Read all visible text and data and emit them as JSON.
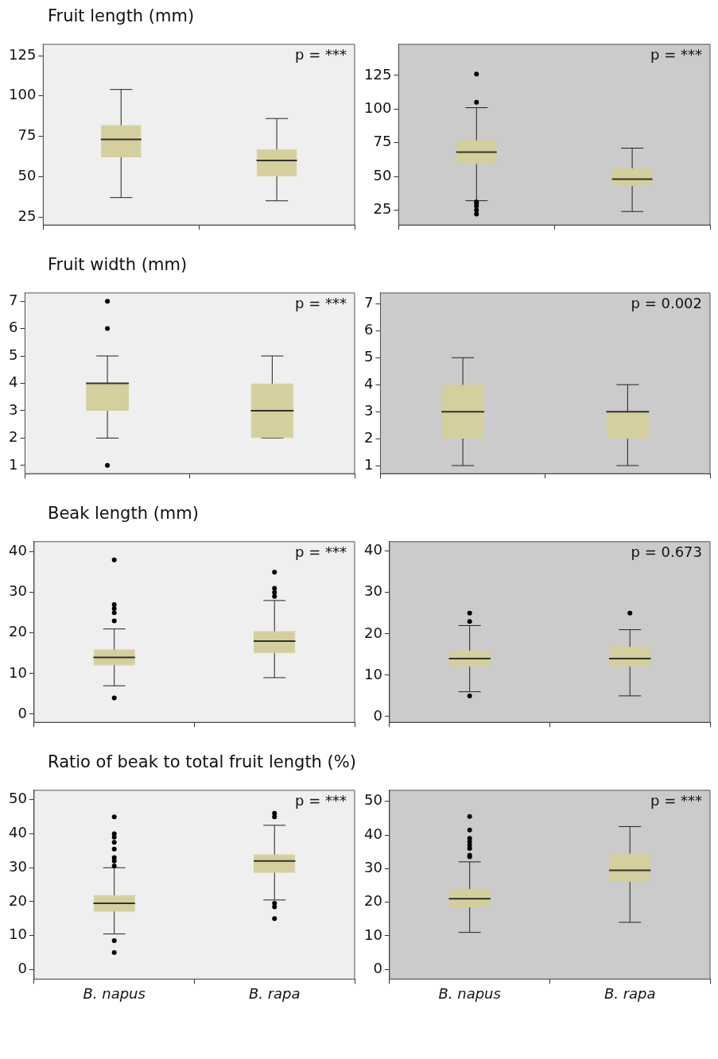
{
  "chart_data": [
    {
      "type": "box",
      "title": "Fruit length (mm)",
      "categories": [
        null,
        null
      ],
      "color": "#d4cf9c",
      "ylim": [
        20,
        132
      ],
      "yticks": [
        25,
        50,
        75,
        100,
        125
      ],
      "tick_labels": "y",
      "annotations": [
        "p = ***"
      ],
      "boxes": [
        {
          "low": 37,
          "q1": 62,
          "median": 73,
          "q3": 82,
          "high": 104
        },
        {
          "low": 35,
          "q1": 50,
          "median": 60,
          "q3": 67,
          "high": 86
        }
      ]
    },
    {
      "type": "box",
      "categories": [
        null,
        null
      ],
      "color": "#d4cf9c",
      "ylim": [
        14,
        148
      ],
      "yticks": [
        25,
        50,
        75,
        100,
        125
      ],
      "tick_labels": "y",
      "annotations": [
        "p = ***"
      ],
      "boxes": [
        {
          "low": 32,
          "q1": 59,
          "median": 68,
          "q3": 77,
          "high": 101,
          "outliers": [
            126,
            105,
            31,
            30,
            28,
            25,
            22
          ]
        },
        {
          "low": 24,
          "q1": 43,
          "median": 48,
          "q3": 56,
          "high": 71
        }
      ]
    },
    {
      "type": "box",
      "title": "Fruit width (mm)",
      "categories": [
        null,
        null
      ],
      "color": "#d4cf9c",
      "ylim": [
        0.7,
        7.3
      ],
      "yticks": [
        1,
        2,
        3,
        4,
        5,
        6,
        7
      ],
      "tick_labels": "y",
      "annotations": [
        "p = ***"
      ],
      "boxes": [
        {
          "low": 2,
          "q1": 3,
          "median": 4,
          "q3": 4,
          "high": 5,
          "outliers": [
            7,
            6,
            1
          ]
        },
        {
          "low": 2,
          "q1": 2,
          "median": 3,
          "q3": 4,
          "high": 5
        }
      ]
    },
    {
      "type": "box",
      "categories": [
        null,
        null
      ],
      "color": "#d4cf9c",
      "ylim": [
        0.7,
        7.4
      ],
      "yticks": [
        1,
        2,
        3,
        4,
        5,
        6,
        7
      ],
      "tick_labels": "y",
      "annotations": [
        "p = 0.002"
      ],
      "boxes": [
        {
          "low": 1,
          "q1": 2,
          "median": 3,
          "q3": 4,
          "high": 5
        },
        {
          "low": 1,
          "q1": 2,
          "median": 3,
          "q3": 3,
          "high": 4
        }
      ]
    },
    {
      "type": "box",
      "title": "Beak length (mm)",
      "categories": [
        null,
        null
      ],
      "color": "#d4cf9c",
      "ylim": [
        -2,
        42.5
      ],
      "yticks": [
        0,
        10,
        20,
        30,
        40
      ],
      "tick_labels": "y",
      "annotations": [
        "p = ***"
      ],
      "boxes": [
        {
          "low": 7,
          "q1": 12,
          "median": 14,
          "q3": 16,
          "high": 21,
          "outliers": [
            38,
            27,
            26,
            25,
            23,
            4
          ]
        },
        {
          "low": 9,
          "q1": 15,
          "median": 18,
          "q3": 20.5,
          "high": 28,
          "outliers": [
            35,
            31,
            30,
            29
          ]
        }
      ]
    },
    {
      "type": "box",
      "categories": [
        null,
        null
      ],
      "color": "#d4cf9c",
      "ylim": [
        -1.4,
        42.3
      ],
      "yticks": [
        0,
        10,
        20,
        30,
        40
      ],
      "tick_labels": "y",
      "annotations": [
        "p = 0.673"
      ],
      "boxes": [
        {
          "low": 6,
          "q1": 12,
          "median": 14,
          "q3": 16,
          "high": 22,
          "outliers": [
            25,
            23,
            5
          ]
        },
        {
          "low": 5,
          "q1": 12,
          "median": 14,
          "q3": 17,
          "high": 21,
          "outliers": [
            25
          ]
        }
      ]
    },
    {
      "type": "box",
      "title": "Ratio of beak to total fruit length (%)",
      "categories": [
        "B. napus",
        "B. rapa"
      ],
      "color": "#d4cf9c",
      "ylim": [
        -2.8,
        52.8
      ],
      "yticks": [
        0,
        10,
        20,
        30,
        40,
        50
      ],
      "annotations": [
        "p = ***"
      ],
      "boxes": [
        {
          "low": 10.5,
          "q1": 17,
          "median": 19.5,
          "q3": 22,
          "high": 30,
          "outliers": [
            45,
            40,
            39,
            37.5,
            35.5,
            33,
            32,
            30.5,
            8.5,
            5
          ]
        },
        {
          "low": 20.5,
          "q1": 28.5,
          "median": 32,
          "q3": 34,
          "high": 42.5,
          "outliers": [
            46,
            45,
            19.5,
            18.5,
            15
          ]
        }
      ]
    },
    {
      "type": "box",
      "categories": [
        "B. napus",
        "B. rapa"
      ],
      "color": "#d4cf9c",
      "ylim": [
        -2.9,
        53.3
      ],
      "yticks": [
        0,
        10,
        20,
        30,
        40,
        50
      ],
      "annotations": [
        "p = ***"
      ],
      "boxes": [
        {
          "low": 11,
          "q1": 18.5,
          "median": 21,
          "q3": 24,
          "high": 32,
          "outliers": [
            45.5,
            41.5,
            39,
            38,
            37,
            36,
            34,
            33.5
          ]
        },
        {
          "low": 14,
          "q1": 26,
          "median": 29.5,
          "q3": 34.5,
          "high": 42.5
        }
      ]
    }
  ]
}
